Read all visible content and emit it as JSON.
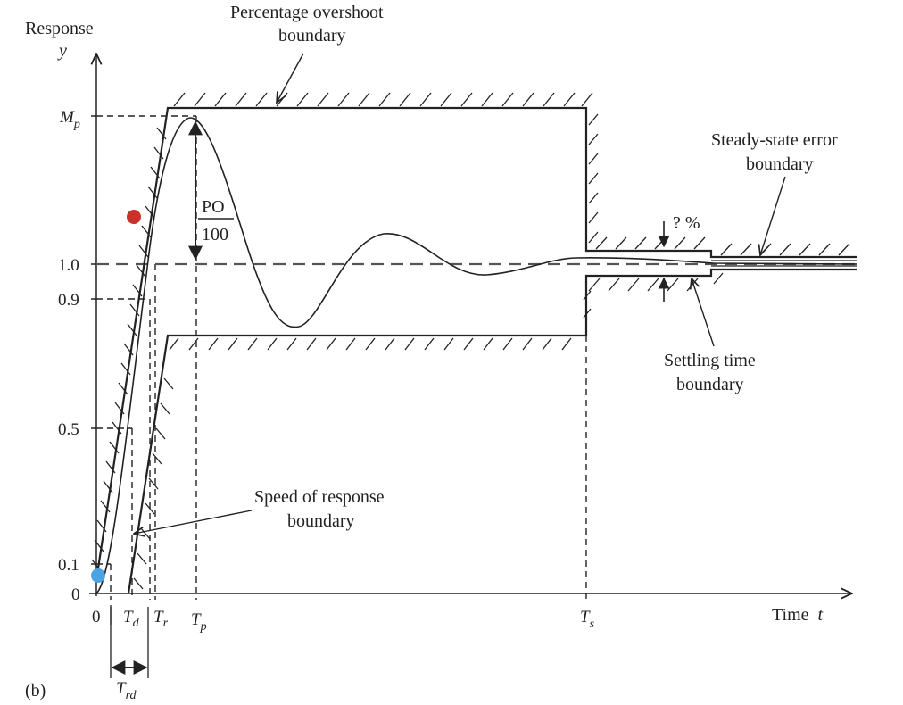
{
  "figure_label": "(b)",
  "y_axis": {
    "title": "Response",
    "symbol": "y"
  },
  "x_axis": {
    "title_prefix": "Time",
    "symbol": "t"
  },
  "y_ticks": {
    "mp_main": "M",
    "mp_sub": "p",
    "one": "1.0",
    "p9": "0.9",
    "p5": "0.5",
    "p1": "0.1",
    "zero": "0"
  },
  "x_ticks": {
    "zero": "0",
    "td_main": "T",
    "td_sub": "d",
    "tr_main": "T",
    "tr_sub": "r",
    "tp_main": "T",
    "tp_sub": "p",
    "ts_main": "T",
    "ts_sub": "s",
    "trd_main": "T",
    "trd_sub": "rd"
  },
  "annotations": {
    "overshoot_line1": "Percentage overshoot",
    "overshoot_line2": "boundary",
    "po_numerator": "PO",
    "po_denominator": "100",
    "steady_line1": "Steady-state error",
    "steady_line2": "boundary",
    "percent": "? %",
    "settling_line1": "Settling time",
    "settling_line2": "boundary",
    "speed_line1": "Speed of response",
    "speed_line2": "boundary"
  },
  "markers": {
    "red": "#c8322a",
    "blue": "#4ba3e3"
  },
  "colors": {
    "ink": "#222222"
  }
}
